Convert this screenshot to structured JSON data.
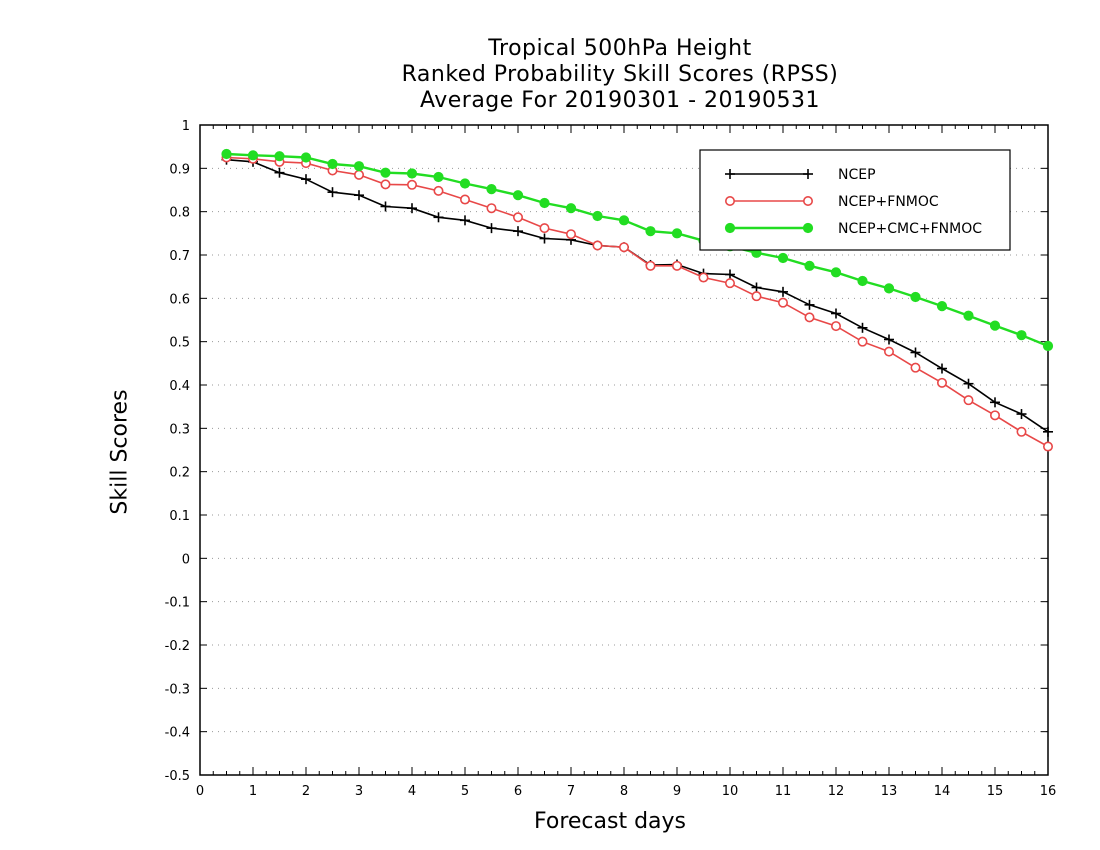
{
  "chart_data": {
    "type": "line",
    "title": [
      "Tropical 500hPa Height",
      "Ranked Probability Skill Scores (RPSS)",
      "Average For 20190301 - 20190531"
    ],
    "xlabel": "Forecast days",
    "ylabel": "Skill Scores",
    "xlim": [
      0,
      16
    ],
    "ylim": [
      -0.5,
      1
    ],
    "xticks": [
      0,
      1,
      2,
      3,
      4,
      5,
      6,
      7,
      8,
      9,
      10,
      11,
      12,
      13,
      14,
      15,
      16
    ],
    "yticks": [
      -0.5,
      -0.4,
      -0.3,
      -0.2,
      -0.1,
      0,
      0.1,
      0.2,
      0.3,
      0.4,
      0.5,
      0.6,
      0.7,
      0.8,
      0.9,
      1
    ],
    "ytick_labels": [
      "-0.5",
      "-0.4",
      "-0.3",
      "-0.2",
      "-0.1",
      "0",
      "0.1",
      "0.2",
      "0.3",
      "0.4",
      "0.5",
      "0.6",
      "0.7",
      "0.8",
      "0.9",
      "1"
    ],
    "grid": true,
    "legend_position": "top-right",
    "x": [
      0.5,
      1,
      1.5,
      2,
      2.5,
      3,
      3.5,
      4,
      4.5,
      5,
      5.5,
      6,
      6.5,
      7,
      7.5,
      8,
      8.5,
      9,
      9.5,
      10,
      10.5,
      11,
      11.5,
      12,
      12.5,
      13,
      13.5,
      14,
      14.5,
      15,
      15.5,
      16
    ],
    "series": [
      {
        "name": "NCEP",
        "color": "#000000",
        "marker": "plus",
        "values": [
          0.92,
          0.915,
          0.89,
          0.875,
          0.845,
          0.838,
          0.812,
          0.808,
          0.787,
          0.78,
          0.762,
          0.755,
          0.738,
          0.735,
          0.722,
          0.718,
          0.677,
          0.678,
          0.657,
          0.655,
          0.625,
          0.615,
          0.585,
          0.565,
          0.532,
          0.505,
          0.475,
          0.438,
          0.403,
          0.36,
          0.333,
          0.292
        ]
      },
      {
        "name": "NCEP+FNMOC",
        "color": "#e84848",
        "marker": "open-circle",
        "values": [
          0.925,
          0.922,
          0.915,
          0.912,
          0.895,
          0.885,
          0.863,
          0.862,
          0.848,
          0.828,
          0.808,
          0.787,
          0.762,
          0.748,
          0.722,
          0.718,
          0.675,
          0.675,
          0.648,
          0.635,
          0.605,
          0.59,
          0.556,
          0.536,
          0.5,
          0.477,
          0.44,
          0.405,
          0.365,
          0.33,
          0.292,
          0.258
        ]
      },
      {
        "name": "NCEP+CMC+FNMOC",
        "color": "#22dd22",
        "marker": "filled-circle",
        "values": [
          0.933,
          0.93,
          0.928,
          0.925,
          0.91,
          0.905,
          0.89,
          0.888,
          0.88,
          0.865,
          0.852,
          0.838,
          0.82,
          0.808,
          0.79,
          0.78,
          0.755,
          0.75,
          0.733,
          0.72,
          0.705,
          0.693,
          0.675,
          0.66,
          0.64,
          0.623,
          0.603,
          0.582,
          0.56,
          0.537,
          0.515,
          0.49
        ]
      }
    ]
  }
}
